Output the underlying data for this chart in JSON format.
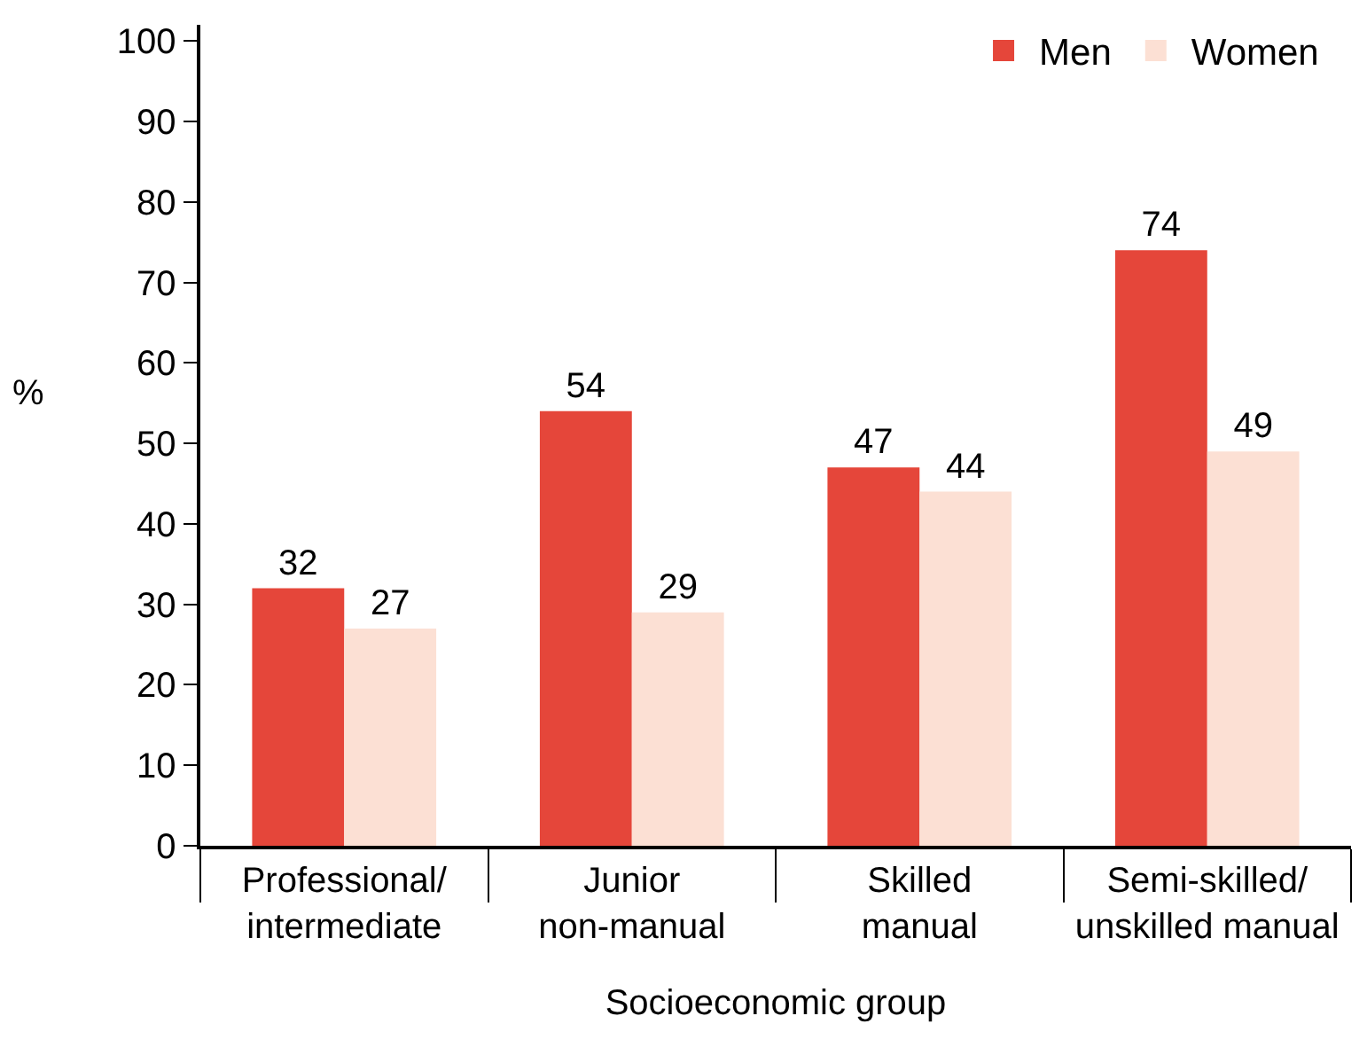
{
  "chart_data": {
    "type": "bar",
    "xlabel": "Socioeconomic group",
    "ylabel": "%",
    "categories": [
      "Professional/\nintermediate",
      "Junior\nnon-manual",
      "Skilled\nmanual",
      "Semi-skilled/\nunskilled manual"
    ],
    "series": [
      {
        "name": "Men",
        "color": "#e5463a",
        "values": [
          32,
          54,
          47,
          74
        ]
      },
      {
        "name": "Women",
        "color": "#fce0d4",
        "values": [
          27,
          29,
          44,
          49
        ]
      }
    ],
    "ylim": [
      0,
      102
    ],
    "yticks": [
      0,
      10,
      20,
      30,
      40,
      50,
      60,
      70,
      80,
      90,
      100
    ],
    "data_labels": true,
    "legend": "top right"
  }
}
